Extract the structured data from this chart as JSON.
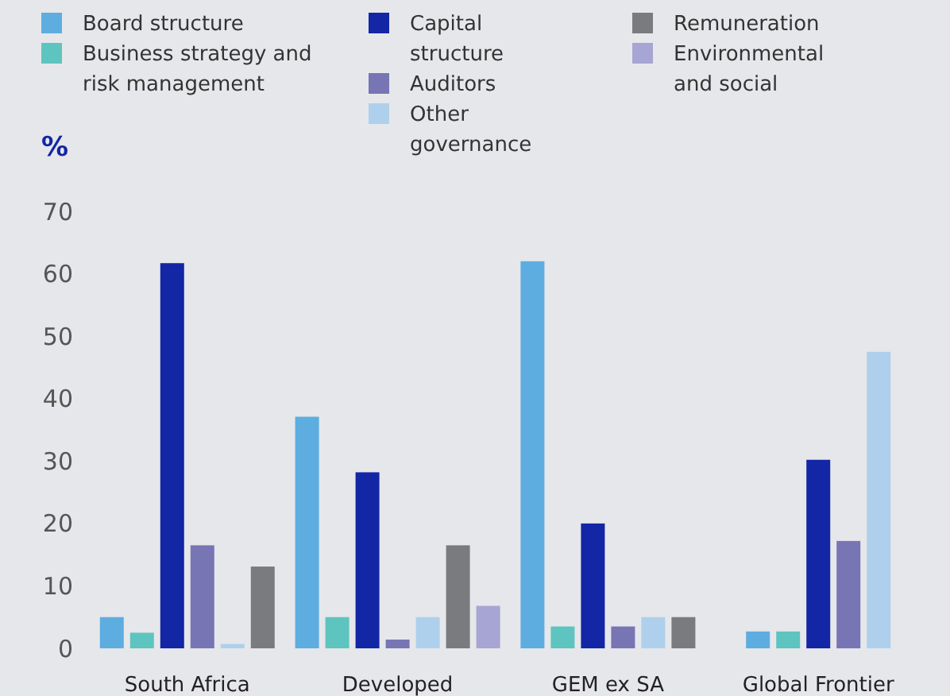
{
  "chart_data": {
    "type": "bar",
    "ylabel": "%",
    "categories": [
      "South Africa",
      "Developed",
      "GEM ex SA",
      "Global Frontier"
    ],
    "series": [
      {
        "name": "Board structure",
        "color": "#5dade0",
        "values": [
          5.0,
          37.1,
          62.0,
          2.7
        ]
      },
      {
        "name": "Business strategy and risk management",
        "color": "#5ec4bf",
        "values": [
          2.5,
          5.0,
          3.5,
          2.7
        ]
      },
      {
        "name": "Capital structure",
        "color": "#1226a6",
        "values": [
          61.7,
          28.2,
          20.0,
          30.2
        ]
      },
      {
        "name": "Auditors",
        "color": "#7875b5",
        "values": [
          16.5,
          1.4,
          3.5,
          17.2
        ]
      },
      {
        "name": "Other governance",
        "color": "#aed0ec",
        "values": [
          0.7,
          5.0,
          5.0,
          47.5
        ]
      },
      {
        "name": "Remuneration",
        "color": "#7a7b7f",
        "values": [
          13.1,
          16.5,
          5.0,
          null
        ]
      },
      {
        "name": "Environmental and social",
        "color": "#a7a5d3",
        "values": [
          null,
          6.8,
          null,
          null
        ]
      }
    ],
    "ylim": [
      0,
      70
    ],
    "yticks": [
      0,
      10,
      20,
      30,
      40,
      50,
      60,
      70
    ],
    "grid": false,
    "legend": "top"
  }
}
